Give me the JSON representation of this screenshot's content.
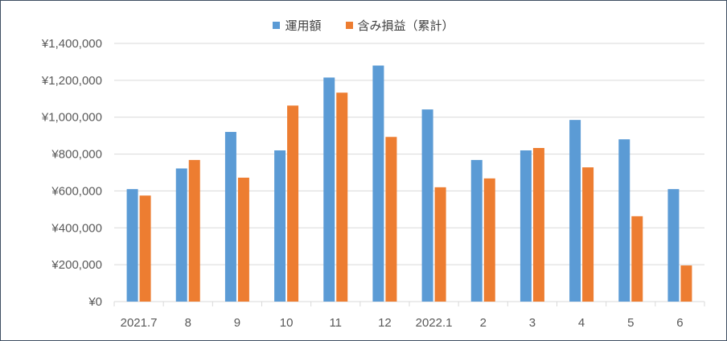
{
  "chart_data": {
    "type": "bar",
    "categories": [
      "2021.7",
      "8",
      "9",
      "10",
      "11",
      "12",
      "2022.1",
      "2",
      "3",
      "4",
      "5",
      "6"
    ],
    "series": [
      {
        "name": "運用額",
        "color": "#5b9bd5",
        "values": [
          610000,
          722000,
          920000,
          820000,
          1215000,
          1280000,
          1042000,
          768000,
          820000,
          985000,
          880000,
          610000
        ]
      },
      {
        "name": "含み損益（累計）",
        "color": "#ed7d31",
        "values": [
          575000,
          768000,
          672000,
          1063000,
          1133000,
          893000,
          620000,
          668000,
          833000,
          728000,
          463000,
          196000
        ]
      }
    ],
    "ylim": [
      0,
      1400000
    ],
    "yticks": [
      0,
      200000,
      400000,
      600000,
      800000,
      1000000,
      1200000,
      1400000
    ],
    "ytick_labels": [
      "¥0",
      "¥200,000",
      "¥400,000",
      "¥600,000",
      "¥800,000",
      "¥1,000,000",
      "¥1,200,000",
      "¥1,400,000"
    ],
    "grid": true,
    "legend_position": "top-center"
  }
}
